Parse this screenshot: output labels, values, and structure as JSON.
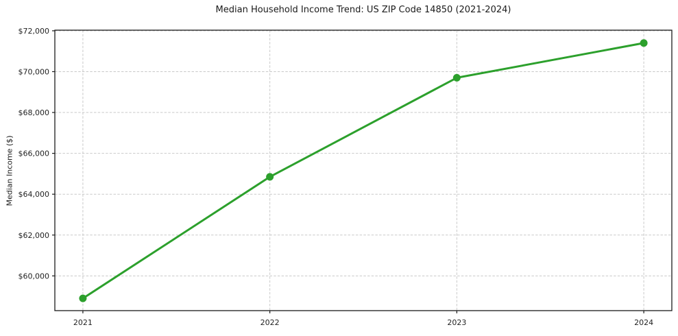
{
  "chart_data": {
    "type": "line",
    "title": "Median Household Income Trend: US ZIP Code 14850 (2021-2024)",
    "xlabel": "",
    "ylabel": "Median Income ($)",
    "x": [
      2021,
      2022,
      2023,
      2024
    ],
    "xtick_labels": [
      "2021",
      "2022",
      "2023",
      "2024"
    ],
    "series": [
      {
        "name": "Median Household Income",
        "values": [
          58900,
          64850,
          69700,
          71400
        ]
      }
    ],
    "yticks": [
      60000,
      62000,
      64000,
      66000,
      68000,
      70000,
      72000
    ],
    "ytick_labels": [
      "$60,000",
      "$62,000",
      "$64,000",
      "$66,000",
      "$68,000",
      "$70,000",
      "$72,000"
    ],
    "ylim": [
      58300,
      72030
    ],
    "xlim": [
      2020.85,
      2024.15
    ],
    "grid": true,
    "grid_style": "dashed",
    "legend": false,
    "colors": {
      "line": "#2ca02c",
      "marker": "#2ca02c",
      "grid": "#c9c9c9",
      "spine": "#1a1a1a",
      "text": "#1f1f1f",
      "background": "#ffffff"
    }
  }
}
